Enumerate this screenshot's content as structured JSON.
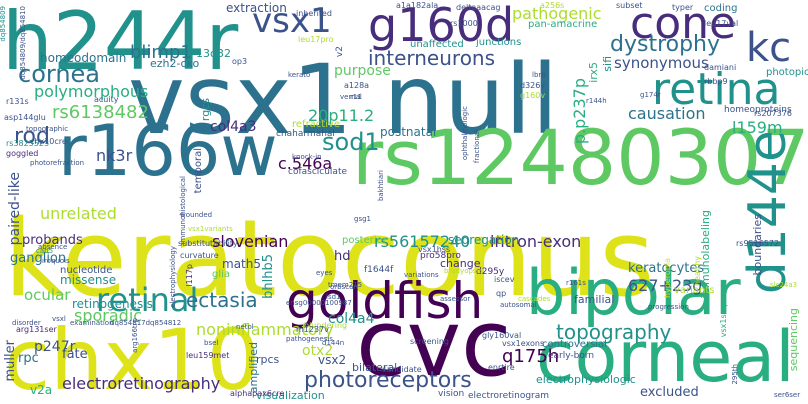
{
  "palette": [
    "#440154",
    "#472d7b",
    "#3b528b",
    "#2c728e",
    "#21918c",
    "#28ae80",
    "#5ec962",
    "#addc30",
    "#dde318",
    "#fde725"
  ],
  "words": [
    {
      "text": "keratoconus",
      "color": "#dde318"
    },
    {
      "text": "vsx1 null",
      "color": "#2c728e"
    },
    {
      "text": "rs12480307",
      "color": "#5ec962"
    },
    {
      "text": "h244r",
      "color": "#21918c"
    },
    {
      "text": "r166w",
      "color": "#2c728e"
    },
    {
      "text": "chx10",
      "color": "#dde318"
    },
    {
      "text": "cvc",
      "color": "#440154"
    },
    {
      "text": "corneal",
      "color": "#28ae80"
    },
    {
      "text": "bipolar",
      "color": "#28ae80"
    },
    {
      "text": "g160d",
      "color": "#472d7b"
    },
    {
      "text": "goldfish",
      "color": "#440154"
    },
    {
      "text": "cone",
      "color": "#472d7b"
    },
    {
      "text": "retina",
      "color": "#21918c"
    },
    {
      "text": "kc",
      "color": "#3b528b"
    },
    {
      "text": "d144e",
      "color": "#21918c"
    },
    {
      "text": "retinal",
      "color": "#21918c"
    },
    {
      "text": "vsx1",
      "color": "#3b528b"
    },
    {
      "text": "dystrophy",
      "color": "#2c728e"
    },
    {
      "text": "interneurons",
      "color": "#3b528b"
    },
    {
      "text": "cornea",
      "color": "#2c728e"
    },
    {
      "text": "photoreceptors",
      "color": "#3b528b"
    },
    {
      "text": "topography",
      "color": "#21918c"
    },
    {
      "text": "sod1",
      "color": "#21918c"
    },
    {
      "text": "rs6138482",
      "color": "#5ec962"
    },
    {
      "text": "blimp1",
      "color": "#2c728e"
    },
    {
      "text": "q175h",
      "color": "#440154"
    },
    {
      "text": "ectasia",
      "color": "#2c728e"
    },
    {
      "text": "polymorphous",
      "color": "#28ae80"
    },
    {
      "text": "pathogenic",
      "color": "#addc30"
    },
    {
      "text": "synonymous",
      "color": "#3b528b"
    },
    {
      "text": "electroretinography",
      "color": "#472d7b"
    },
    {
      "text": "noninflammatory",
      "color": "#addc30"
    },
    {
      "text": "rs56157240",
      "color": "#21918c"
    },
    {
      "text": "slovenian",
      "color": "#440154"
    },
    {
      "text": "causation",
      "color": "#2c728e"
    },
    {
      "text": "rod",
      "color": "#3b528b"
    },
    {
      "text": "nk3r",
      "color": "#3b528b"
    },
    {
      "text": "c.546a",
      "color": "#440154"
    },
    {
      "text": "20p11.2",
      "color": "#28ae80"
    },
    {
      "text": "p.p237p",
      "color": "#28ae80"
    },
    {
      "text": "homeodomain",
      "color": "#2c728e"
    },
    {
      "text": "unrelated",
      "color": "#addc30"
    },
    {
      "text": "intron-exon",
      "color": "#472d7b"
    },
    {
      "text": "627+23g",
      "color": "#3b528b"
    },
    {
      "text": "l159m",
      "color": "#28ae80"
    },
    {
      "text": "purpose",
      "color": "#5ec962"
    },
    {
      "text": "col4a3",
      "color": "#472d7b"
    },
    {
      "text": "paired-like",
      "color": "#3b528b"
    },
    {
      "text": "sporadic",
      "color": "#5ec962"
    },
    {
      "text": "ganglion",
      "color": "#2c728e"
    },
    {
      "text": "ocular",
      "color": "#5ec962"
    },
    {
      "text": "segregation",
      "color": "#21918c"
    },
    {
      "text": "keratocytes",
      "color": "#2c728e"
    },
    {
      "text": "otx2",
      "color": "#addc30"
    },
    {
      "text": "col4a4",
      "color": "#21918c"
    },
    {
      "text": "vsx2",
      "color": "#3b528b"
    },
    {
      "text": "p247r",
      "color": "#3b528b"
    },
    {
      "text": "muller",
      "color": "#3b528b"
    },
    {
      "text": "extraction",
      "color": "#3b528b"
    },
    {
      "text": "postnatal",
      "color": "#2c728e"
    },
    {
      "text": "probands",
      "color": "#472d7b"
    },
    {
      "text": "retinogenesis",
      "color": "#21918c"
    },
    {
      "text": "math5",
      "color": "#3b528b"
    },
    {
      "text": "bhlhb5",
      "color": "#21918c"
    },
    {
      "text": "missense",
      "color": "#21918c"
    },
    {
      "text": "excluded",
      "color": "#3b528b"
    },
    {
      "text": "fate",
      "color": "#3b528b"
    },
    {
      "text": "rpc",
      "color": "#2c728e"
    },
    {
      "text": "v2a",
      "color": "#28ae80"
    },
    {
      "text": "visualization",
      "color": "#21918c"
    },
    {
      "text": "electrophysiologic",
      "color": "#21918c"
    },
    {
      "text": "controversial",
      "color": "#2c728e"
    },
    {
      "text": "immunolabeling",
      "color": "#28ae80"
    },
    {
      "text": "boundaries",
      "color": "#3b528b"
    },
    {
      "text": "sequencing",
      "color": "#5ec962"
    },
    {
      "text": "photopic",
      "color": "#21918c"
    },
    {
      "text": "coding",
      "color": "#2c728e"
    },
    {
      "text": "unaffected",
      "color": "#21918c"
    },
    {
      "text": "junctions",
      "color": "#21918c"
    },
    {
      "text": "amplified",
      "color": "#2c728e"
    },
    {
      "text": "bilateral",
      "color": "#3b528b"
    },
    {
      "text": "familial",
      "color": "#3b528b"
    },
    {
      "text": "change",
      "color": "#472d7b"
    },
    {
      "text": "variants",
      "color": "#addc30"
    },
    {
      "text": "hd",
      "color": "#472d7b"
    },
    {
      "text": "ezh2-cko",
      "color": "#2c728e"
    },
    {
      "text": "13q32",
      "color": "#21918c"
    },
    {
      "text": "rgcs",
      "color": "#21918c"
    },
    {
      "text": "rpcs",
      "color": "#3b528b"
    },
    {
      "text": "irx5",
      "color": "#28ae80"
    },
    {
      "text": "sifi",
      "color": "#21918c"
    },
    {
      "text": "f1644f",
      "color": "#3b528b"
    },
    {
      "text": "glia",
      "color": "#5ec962"
    },
    {
      "text": "d295y",
      "color": "#472d7b"
    },
    {
      "text": "pro58pro",
      "color": "#472d7b"
    },
    {
      "text": "nucleotide",
      "color": "#3b528b"
    },
    {
      "text": "posterior",
      "color": "#5ec962"
    },
    {
      "text": "refractive",
      "color": "#addc30"
    },
    {
      "text": "chaharmahal",
      "color": "#3b528b"
    },
    {
      "text": "temporal",
      "color": "#3b528b"
    },
    {
      "text": "cofasciculate",
      "color": "#3b528b"
    },
    {
      "text": "rs1000",
      "color": "#3b528b"
    },
    {
      "text": "vsx1hss",
      "color": "#3b528b"
    },
    {
      "text": "homeoproteins",
      "color": "#3b528b"
    },
    {
      "text": "vsx1sequence",
      "color": "#28ae80"
    },
    {
      "text": "l117p",
      "color": "#472d7b"
    },
    {
      "text": "blundering",
      "color": "#addc30"
    },
    {
      "text": "rs9516572",
      "color": "#3b528b"
    },
    {
      "text": "iscev",
      "color": "#3b528b"
    },
    {
      "text": "rs3825523",
      "color": "#21918c"
    },
    {
      "text": "r131s",
      "color": "#3b528b"
    },
    {
      "text": "asp144glu",
      "color": "#3b528b"
    },
    {
      "text": "goggled",
      "color": "#472d7b"
    },
    {
      "text": "chx10cre",
      "color": "#3b528b"
    },
    {
      "text": "arg131ser",
      "color": "#472d7b"
    },
    {
      "text": "alphapax6cre",
      "color": "#472d7b"
    },
    {
      "text": "leu159met",
      "color": "#472d7b"
    },
    {
      "text": "gly160val",
      "color": "#3b528b"
    },
    {
      "text": "leu17pro",
      "color": "#addc30"
    },
    {
      "text": "m1237v",
      "color": "#3b528b"
    },
    {
      "text": "damiani",
      "color": "#3b528b"
    },
    {
      "text": "leu17val",
      "color": "#3b528b"
    },
    {
      "text": "hyperopia",
      "color": "#dde318"
    },
    {
      "text": "healthy",
      "color": "#addc30"
    },
    {
      "text": "vision",
      "color": "#3b528b"
    },
    {
      "text": "screening",
      "color": "#3b528b"
    },
    {
      "text": "candidate",
      "color": "#3b528b"
    },
    {
      "text": "enrtire",
      "color": "#3b528b"
    },
    {
      "text": "vsx1exons",
      "color": "#3b528b"
    },
    {
      "text": "early-born",
      "color": "#3b528b"
    },
    {
      "text": "substitutability",
      "color": "#3b528b"
    },
    {
      "text": "curvature",
      "color": "#3b528b"
    },
    {
      "text": "typer",
      "color": "#3b528b"
    },
    {
      "text": "a256s",
      "color": "#addc30"
    },
    {
      "text": "deltaaacag",
      "color": "#3b528b"
    },
    {
      "text": "a1a182ala",
      "color": "#3b528b"
    },
    {
      "text": "inherited",
      "color": "#3b528b"
    },
    {
      "text": "subset",
      "color": "#3b528b"
    },
    {
      "text": "pan-amacrine",
      "color": "#28ae80"
    },
    {
      "text": "op3",
      "color": "#3b528b"
    },
    {
      "text": "d326y",
      "color": "#3b528b"
    },
    {
      "text": "g160v",
      "color": "#addc30"
    },
    {
      "text": "rs207376",
      "color": "#3b528b"
    },
    {
      "text": "rbbp9",
      "color": "#3b528b"
    },
    {
      "text": "acuity",
      "color": "#3b528b"
    },
    {
      "text": "topographic",
      "color": "#3b528b"
    },
    {
      "text": "photorefraction",
      "color": "#3b528b"
    },
    {
      "text": "wounded",
      "color": "#3b528b"
    },
    {
      "text": "ser6ser",
      "color": "#3b528b"
    },
    {
      "text": "295th",
      "color": "#3b528b"
    },
    {
      "text": "slc24a3",
      "color": "#addc30"
    },
    {
      "text": "dq854809",
      "color": "#21918c"
    },
    {
      "text": "iroquois",
      "color": "#3b528b"
    },
    {
      "text": "absence",
      "color": "#3b528b"
    },
    {
      "text": "cab5",
      "color": "#21918c"
    },
    {
      "text": "examination",
      "color": "#3b528b"
    },
    {
      "text": "disorder",
      "color": "#3b528b"
    },
    {
      "text": "arg166trp",
      "color": "#3b528b"
    },
    {
      "text": "ensg00000100987",
      "color": "#3b528b"
    },
    {
      "text": "dq854817dq854812",
      "color": "#3b528b"
    },
    {
      "text": "pathogenesis",
      "color": "#3b528b"
    },
    {
      "text": "bsel",
      "color": "#3b528b"
    },
    {
      "text": "lsd1",
      "color": "#3b528b"
    },
    {
      "text": "assessor",
      "color": "#3b528b"
    },
    {
      "text": "autosomal",
      "color": "#3b528b"
    },
    {
      "text": "cascades",
      "color": "#addc30"
    },
    {
      "text": "knock-in",
      "color": "#3b528b"
    },
    {
      "text": "bakhtiari",
      "color": "#3b528b"
    },
    {
      "text": "gsg1",
      "color": "#3b528b"
    },
    {
      "text": "fractional",
      "color": "#3b528b"
    },
    {
      "text": "ophthalmologic",
      "color": "#3b528b"
    },
    {
      "text": "immunohistological",
      "color": "#3b528b"
    },
    {
      "text": "kerato",
      "color": "#3b528b"
    },
    {
      "text": "vernal",
      "color": "#3b528b"
    },
    {
      "text": "variations",
      "color": "#3b528b"
    },
    {
      "text": "bradyopsia",
      "color": "#addc30"
    },
    {
      "text": "eyes",
      "color": "#3b528b"
    },
    {
      "text": "orbscan",
      "color": "#3b528b"
    },
    {
      "text": "netol",
      "color": "#3b528b"
    },
    {
      "text": "progression",
      "color": "#3b528b"
    },
    {
      "text": "d144n",
      "color": "#3b528b"
    },
    {
      "text": "tmem215",
      "color": "#3b528b"
    },
    {
      "text": "electroretinogram",
      "color": "#3b528b"
    },
    {
      "text": "v2",
      "color": "#3b528b"
    },
    {
      "text": "a128a",
      "color": "#3b528b"
    },
    {
      "text": "r11",
      "color": "#3b528b"
    },
    {
      "text": "r161s",
      "color": "#3b528b"
    },
    {
      "text": "r144h",
      "color": "#3b528b"
    },
    {
      "text": "g174r",
      "color": "#3b528b"
    },
    {
      "text": "lbrb",
      "color": "#3b528b"
    },
    {
      "text": "qp",
      "color": "#3b528b"
    },
    {
      "text": "vsxl",
      "color": "#3b528b"
    },
    {
      "text": "vsx1variants",
      "color": "#addc30"
    },
    {
      "text": "electrophysiology",
      "color": "#3b528b"
    },
    {
      "text": "dq854809/dq854810",
      "color": "#3b528b"
    }
  ]
}
